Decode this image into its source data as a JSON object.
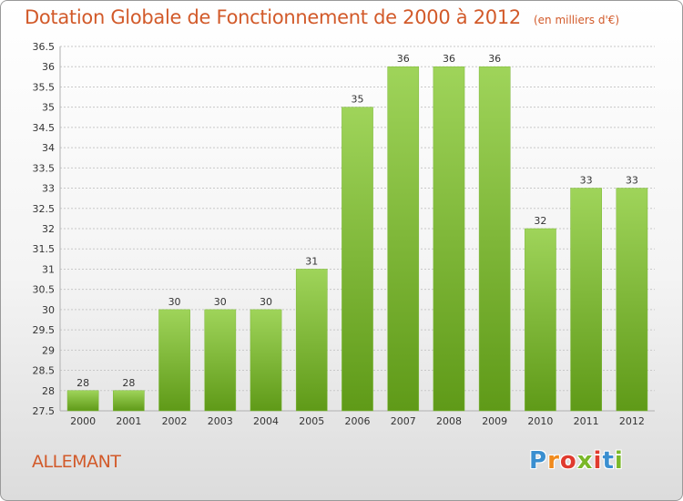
{
  "title": "Dotation Globale de Fonctionnement de 2000 à 2012",
  "subtitle": "(en milliers d'€)",
  "commune": "ALLEMANT",
  "logo": {
    "letters": [
      "P",
      "r",
      "o",
      "x",
      "i",
      "t",
      "i"
    ],
    "colors": [
      "#3a8fd0",
      "#f08a1c",
      "#e03b2f",
      "#7ab828",
      "#e03b2f",
      "#3a8fd0",
      "#7ab828"
    ]
  },
  "colors": {
    "accent": "#d25a2a",
    "bar_top": "#9fd45a",
    "bar_bottom": "#5f9a18",
    "grid": "#c8c8c8",
    "axis_text": "#333333"
  },
  "chart_data": {
    "type": "bar",
    "categories": [
      "2000",
      "2001",
      "2002",
      "2003",
      "2004",
      "2005",
      "2006",
      "2007",
      "2008",
      "2009",
      "2010",
      "2011",
      "2012"
    ],
    "values": [
      28,
      28,
      30,
      30,
      30,
      31,
      35,
      36,
      36,
      36,
      32,
      33,
      33
    ],
    "ylim": [
      27.5,
      36.5
    ],
    "yticks": [
      "27.5",
      "28",
      "28.5",
      "29",
      "29.5",
      "30",
      "30.5",
      "31",
      "31.5",
      "32",
      "32.5",
      "33",
      "33.5",
      "34",
      "34.5",
      "35",
      "35.5",
      "36",
      "36.5"
    ],
    "grid": true,
    "data_labels": true
  }
}
